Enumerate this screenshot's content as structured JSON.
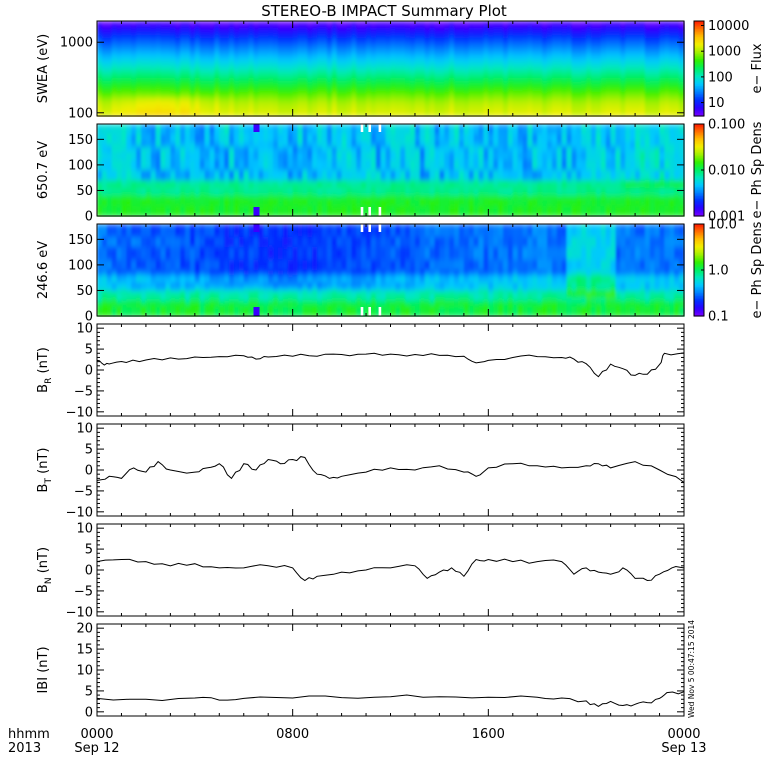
{
  "title": "STEREO-B IMPACT Summary Plot",
  "stamp": "Wed Nov 5 00:47:15 2014",
  "colors": {
    "rainbow": [
      "#7a00ff",
      "#2a00ff",
      "#0030ff",
      "#0080ff",
      "#00c8ff",
      "#00e8c0",
      "#00f060",
      "#30f000",
      "#a0f000",
      "#f0f000",
      "#ffc000",
      "#ff7000",
      "#ff1800"
    ],
    "line": "#000000",
    "frame": "#000000"
  },
  "time_axis": {
    "row_label_1": "hhmm",
    "row_label_2": "2013",
    "ticks": [
      {
        "hour": 0,
        "label": "0000",
        "date": "Sep 12"
      },
      {
        "hour": 8,
        "label": "0800",
        "date": ""
      },
      {
        "hour": 16,
        "label": "1600",
        "date": ""
      },
      {
        "hour": 24,
        "label": "0000",
        "date": "Sep 13"
      }
    ],
    "range_hours": [
      0,
      24
    ],
    "minor_step_hours": 1
  },
  "chart_data": [
    {
      "type": "heatmap",
      "ylabel": "SWEA (eV)",
      "yscale": "log",
      "ylim": [
        90,
        2000
      ],
      "yticks": [
        {
          "value": 1000,
          "label": "1000"
        },
        {
          "value": 100,
          "label": "100"
        }
      ],
      "colorbar": {
        "label": "e− Flux",
        "scale": "log",
        "range": [
          3,
          15000
        ],
        "ticks": [
          {
            "value": 10000,
            "label": "10000"
          },
          {
            "value": 1000,
            "label": "1000"
          },
          {
            "value": 100,
            "label": "100"
          },
          {
            "value": 10,
            "label": "10"
          }
        ]
      }
    },
    {
      "type": "heatmap",
      "ylabel": "650.7 eV",
      "ylim": [
        0,
        180
      ],
      "yticks": [
        {
          "value": 150,
          "label": "150"
        },
        {
          "value": 100,
          "label": "100"
        },
        {
          "value": 50,
          "label": "50"
        },
        {
          "value": 0,
          "label": "0"
        }
      ],
      "colorbar": {
        "label": "e− Ph Sp Dens",
        "scale": "log",
        "range": [
          0.001,
          0.1
        ],
        "ticks": [
          {
            "value": 0.1,
            "label": "0.100"
          },
          {
            "value": 0.01,
            "label": "0.010"
          },
          {
            "value": 0.001,
            "label": "0.001"
          }
        ]
      }
    },
    {
      "type": "heatmap",
      "ylabel": "246.6 eV",
      "ylim": [
        0,
        180
      ],
      "yticks": [
        {
          "value": 150,
          "label": "150"
        },
        {
          "value": 100,
          "label": "100"
        },
        {
          "value": 50,
          "label": "50"
        },
        {
          "value": 0,
          "label": "0"
        }
      ],
      "colorbar": {
        "label": "e− Ph Sp Dens",
        "scale": "log",
        "range": [
          0.1,
          10
        ],
        "ticks": [
          {
            "value": 10,
            "label": "10.0"
          },
          {
            "value": 1,
            "label": "1.0"
          },
          {
            "value": 0.1,
            "label": "0.1"
          }
        ]
      }
    },
    {
      "type": "line",
      "ylabel": "B",
      "ylabel_sub": "R",
      "ylabel_unit": "(nT)",
      "ylim": [
        -11,
        11
      ],
      "yticks": [
        {
          "value": 10,
          "label": "10"
        },
        {
          "value": 5,
          "label": "5"
        },
        {
          "value": 0,
          "label": "0"
        },
        {
          "value": -5,
          "label": "−5"
        },
        {
          "value": -10,
          "label": "−10"
        }
      ],
      "x": [
        0,
        0.3,
        0.6,
        1.2,
        2,
        3,
        4,
        5,
        6,
        6.5,
        7,
        8,
        9,
        10,
        11,
        12,
        13,
        14,
        15,
        15.5,
        16,
        17,
        18,
        19,
        19.5,
        20,
        20.5,
        21,
        21.5,
        22,
        22.5,
        23,
        23.2,
        24
      ],
      "values": [
        2.3,
        1.2,
        1.6,
        1.8,
        2.4,
        2.9,
        3.1,
        3.2,
        3.4,
        2.6,
        3.1,
        3.3,
        3.3,
        3.7,
        3.8,
        3.8,
        3.7,
        3.5,
        3.3,
        1.7,
        2.3,
        3.0,
        3.2,
        3.0,
        2.6,
        1.5,
        -1.6,
        1.4,
        0.3,
        -1.3,
        -1.0,
        1.3,
        4.0,
        4.1
      ]
    },
    {
      "type": "line",
      "ylabel": "B",
      "ylabel_sub": "T",
      "ylabel_unit": "(nT)",
      "ylim": [
        -11,
        11
      ],
      "yticks": [
        {
          "value": 10,
          "label": "10"
        },
        {
          "value": 5,
          "label": "5"
        },
        {
          "value": 0,
          "label": "0"
        },
        {
          "value": -5,
          "label": "−5"
        },
        {
          "value": -10,
          "label": "−10"
        }
      ],
      "x": [
        0,
        0.5,
        1,
        1.5,
        2,
        2.5,
        3,
        4,
        4.5,
        5,
        5.5,
        6,
        6.5,
        7,
        7.5,
        8,
        8.5,
        9,
        9.5,
        10,
        11,
        12,
        13,
        14,
        15,
        15.5,
        16,
        17,
        18,
        19,
        20,
        20.5,
        21,
        22,
        23,
        24
      ],
      "values": [
        -2.5,
        -1.5,
        -2.0,
        0.5,
        -0.5,
        2.0,
        0.0,
        -0.5,
        0.5,
        1.5,
        -2.0,
        1.5,
        0.0,
        2.5,
        1.5,
        2.5,
        3.0,
        -1.0,
        -2.0,
        -1.5,
        -0.5,
        0.5,
        0.0,
        1.0,
        -0.5,
        -1.5,
        0.5,
        1.5,
        1.0,
        0.5,
        1.0,
        1.5,
        0.5,
        2.0,
        0.0,
        -3.0
      ]
    },
    {
      "type": "line",
      "ylabel": "B",
      "ylabel_sub": "N",
      "ylabel_unit": "(nT)",
      "ylim": [
        -11,
        11
      ],
      "yticks": [
        {
          "value": 10,
          "label": "10"
        },
        {
          "value": 5,
          "label": "5"
        },
        {
          "value": 0,
          "label": "0"
        },
        {
          "value": -5,
          "label": "−5"
        },
        {
          "value": -10,
          "label": "−10"
        }
      ],
      "x": [
        0,
        1,
        2,
        3,
        4,
        5,
        6,
        7,
        8,
        8.5,
        9,
        10,
        11,
        12,
        13,
        13.5,
        14,
        14.5,
        15,
        15.5,
        16,
        17,
        18,
        19,
        19.5,
        20,
        20.5,
        21,
        21.5,
        22,
        22.5,
        23,
        23.5,
        24
      ],
      "values": [
        2.0,
        2.5,
        2.0,
        1.0,
        1.5,
        0.5,
        0.5,
        1.0,
        0.5,
        -2.5,
        -1.5,
        -0.5,
        0.0,
        0.5,
        1.0,
        -2.0,
        -0.5,
        0.5,
        -1.5,
        2.5,
        2.5,
        2.0,
        2.0,
        2.0,
        -1.0,
        0.5,
        -0.5,
        -1.0,
        0.5,
        -2.0,
        -2.5,
        -1.0,
        0.5,
        0.5
      ]
    },
    {
      "type": "line",
      "ylabel": "IBI",
      "ylabel_sub": "",
      "ylabel_unit": "(nT)",
      "ylim": [
        -1,
        21
      ],
      "yticks": [
        {
          "value": 20,
          "label": "20"
        },
        {
          "value": 15,
          "label": "15"
        },
        {
          "value": 10,
          "label": "10"
        },
        {
          "value": 5,
          "label": "5"
        },
        {
          "value": 0,
          "label": "0"
        }
      ],
      "x": [
        0,
        2,
        4,
        5,
        6,
        8,
        10,
        12,
        14,
        16,
        18,
        19,
        20,
        20.5,
        21,
        21.5,
        22,
        22.5,
        23,
        23.3,
        24
      ],
      "values": [
        3.2,
        3.0,
        3.3,
        2.8,
        3.2,
        3.3,
        3.4,
        3.6,
        3.6,
        3.5,
        3.5,
        3.3,
        2.6,
        1.3,
        2.5,
        1.5,
        1.8,
        2.2,
        3.2,
        4.6,
        4.8
      ]
    }
  ]
}
